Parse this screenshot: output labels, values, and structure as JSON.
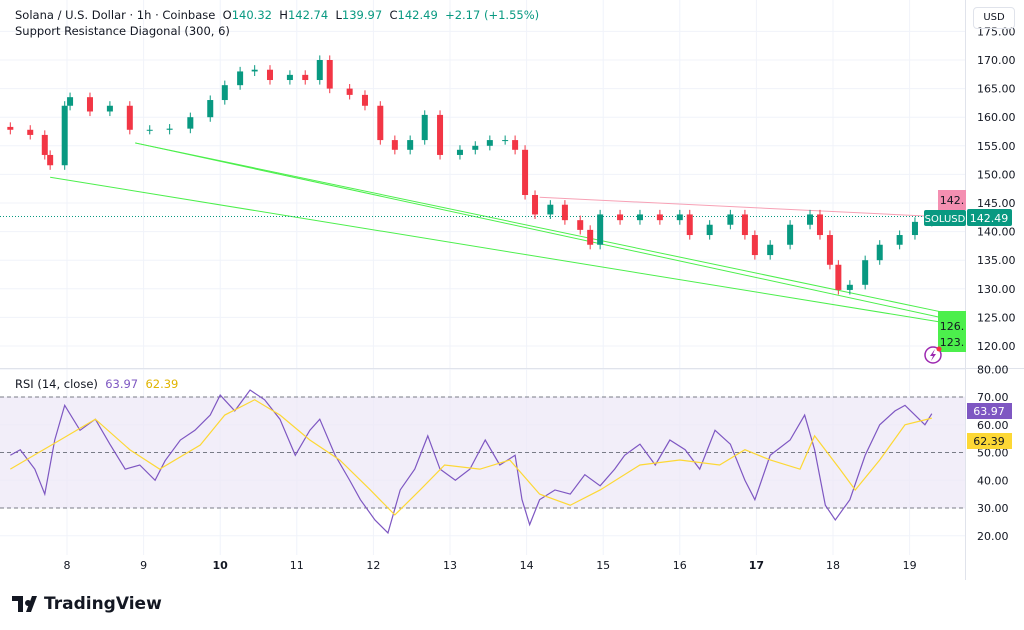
{
  "header": {
    "symbol": "Solana / U.S. Dollar · 1h · Coinbase",
    "o_label": "O",
    "o": "140.32",
    "h_label": "H",
    "h": "142.74",
    "l_label": "L",
    "l": "139.97",
    "c_label": "C",
    "c": "142.49",
    "change": "+2.17 (+1.55%)",
    "indicator": "Support Resistance Diagonal (300, 6)"
  },
  "currency_button": "USD",
  "rsi_title": "RSI (14, close)",
  "rsi_value": "63.97",
  "rsi_ma_value": "62.39",
  "price_tag": {
    "symbol": "SOLUSD",
    "value": "142.49"
  },
  "sr_labels": {
    "resistance": "142.",
    "support1": "126.",
    "support2": "123."
  },
  "brand": "TradingView",
  "colors": {
    "up": "#089981",
    "down": "#f23645",
    "rsi": "#7e57c2",
    "rsi_ma": "#fdd835",
    "support": "#00e600",
    "resistance": "#f7a1b5",
    "rsi_band": "#ede7f6"
  },
  "chart_data": [
    {
      "type": "candlestick",
      "title": "Solana / U.S. Dollar · 1h · Coinbase",
      "xlabel": "",
      "ylabel": "",
      "ylim": [
        117,
        177
      ],
      "x_ticks": [
        "8",
        "9",
        "10",
        "11",
        "12",
        "13",
        "14",
        "15",
        "16",
        "17",
        "18",
        "19"
      ],
      "x_ticks_bold": [
        "10",
        "17"
      ],
      "y_ticks": [
        "120.00",
        "125.00",
        "130.00",
        "135.00",
        "140.00",
        "145.00",
        "150.00",
        "155.00",
        "160.00",
        "165.00",
        "170.00",
        "175.00"
      ],
      "grid": true,
      "x": [
        7.26,
        7.52,
        7.71,
        7.78,
        7.97,
        8.04,
        8.3,
        8.56,
        8.82,
        9.08,
        9.34,
        9.61,
        9.87,
        10.06,
        10.26,
        10.45,
        10.65,
        10.91,
        11.11,
        11.3,
        11.43,
        11.69,
        11.89,
        12.09,
        12.28,
        12.48,
        12.67,
        12.87,
        13.13,
        13.33,
        13.52,
        13.72,
        13.85,
        13.98,
        14.11,
        14.31,
        14.5,
        14.7,
        14.83,
        14.96,
        15.22,
        15.48,
        15.74,
        16.0,
        16.13,
        16.39,
        16.66,
        16.85,
        16.98,
        17.18,
        17.44,
        17.7,
        17.83,
        17.96,
        18.07,
        18.22,
        18.42,
        18.61,
        18.87,
        19.07,
        19.29
      ],
      "close": [
        157.8,
        156.9,
        153.4,
        151.6,
        162,
        163.5,
        161,
        162,
        157.8,
        157.8,
        158,
        160,
        163,
        165.6,
        168,
        168.3,
        166.5,
        167.4,
        166.5,
        170,
        165,
        163.9,
        162,
        156,
        154.3,
        156,
        160.4,
        153.4,
        154.3,
        155,
        156,
        156,
        154.3,
        146.4,
        143,
        144.7,
        142,
        140.3,
        137.7,
        143,
        142,
        143,
        142,
        143,
        139.4,
        141.2,
        143,
        139.4,
        135.9,
        137.7,
        141.2,
        143,
        139.4,
        134.2,
        129.8,
        130.7,
        135,
        137.7,
        139.4,
        141.7,
        142.49
      ],
      "lines": [
        {
          "kind": "support",
          "x": [
            7.78,
            19.4
          ],
          "y": [
            149.5,
            124.2
          ]
        },
        {
          "kind": "support",
          "x": [
            8.89,
            19.4
          ],
          "y": [
            155.5,
            126
          ]
        },
        {
          "kind": "support",
          "x": [
            8.89,
            19.4
          ],
          "y": [
            155.5,
            125
          ]
        },
        {
          "kind": "resistance",
          "x": [
            14.17,
            19.4
          ],
          "y": [
            146,
            142.6
          ]
        }
      ]
    },
    {
      "type": "line",
      "title": "RSI (14, close)",
      "ylim": [
        15,
        82
      ],
      "y_ticks": [
        "20.00",
        "30.00",
        "40.00",
        "50.00",
        "60.00",
        "70.00",
        "80.00"
      ],
      "bands": [
        30,
        50,
        70
      ],
      "series": [
        {
          "name": "RSI",
          "x": [
            7.26,
            7.39,
            7.58,
            7.71,
            7.84,
            7.97,
            8.17,
            8.37,
            8.56,
            8.76,
            8.95,
            9.15,
            9.28,
            9.48,
            9.67,
            9.87,
            10.0,
            10.19,
            10.39,
            10.58,
            10.78,
            10.98,
            11.17,
            11.3,
            11.5,
            11.69,
            11.83,
            12.02,
            12.19,
            12.35,
            12.54,
            12.71,
            12.87,
            13.07,
            13.26,
            13.46,
            13.65,
            13.85,
            13.94,
            14.04,
            14.17,
            14.37,
            14.57,
            14.76,
            14.96,
            15.15,
            15.28,
            15.48,
            15.68,
            15.87,
            16.07,
            16.26,
            16.46,
            16.66,
            16.85,
            16.98,
            17.18,
            17.44,
            17.63,
            17.76,
            17.9,
            18.03,
            18.22,
            18.42,
            18.61,
            18.81,
            18.94,
            19.07,
            19.2,
            19.29
          ],
          "values": [
            49,
            51,
            44,
            35,
            54.5,
            67,
            58,
            62,
            53,
            44,
            45.5,
            40,
            47,
            54.5,
            58,
            63.5,
            70.7,
            65,
            72.5,
            69,
            62,
            49,
            58,
            62,
            49,
            40,
            33,
            25.7,
            21,
            36.5,
            44,
            56,
            44,
            40,
            44,
            54.5,
            45.5,
            49,
            33,
            24,
            33,
            36.5,
            35,
            42,
            38,
            44,
            49,
            53,
            45.5,
            54.5,
            51,
            44,
            58,
            53,
            40,
            33,
            49,
            54.5,
            63.5,
            51,
            31,
            25.7,
            33,
            49,
            60,
            65,
            67,
            63.5,
            60,
            63.97
          ]
        },
        {
          "name": "RSI-based MA",
          "x": [
            7.26,
            7.91,
            8.37,
            8.82,
            9.21,
            9.74,
            10.06,
            10.45,
            10.78,
            11.17,
            11.56,
            11.96,
            12.28,
            12.61,
            12.93,
            13.39,
            13.78,
            14.17,
            14.57,
            14.96,
            15.48,
            16.0,
            16.52,
            16.85,
            17.18,
            17.57,
            17.76,
            18.09,
            18.29,
            18.61,
            18.94,
            19.29
          ],
          "values": [
            44,
            54.5,
            62,
            51,
            44,
            52.7,
            63.5,
            69,
            63.5,
            54.5,
            47.3,
            36.5,
            27.5,
            36.5,
            45.5,
            44,
            47.3,
            35,
            31,
            36.5,
            45.5,
            47.3,
            45.5,
            51,
            47.3,
            44,
            56,
            44,
            36.5,
            47.3,
            60,
            62.39
          ]
        }
      ]
    }
  ]
}
